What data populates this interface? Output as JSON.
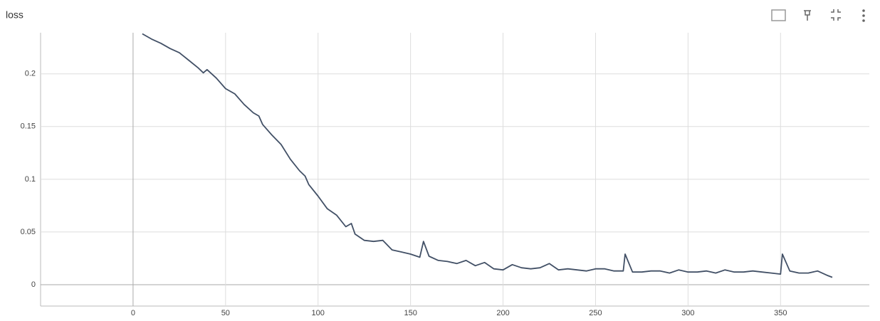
{
  "chart_data": {
    "type": "line",
    "title": "loss",
    "x": [
      5,
      10,
      15,
      20,
      25,
      30,
      35,
      38,
      40,
      45,
      50,
      55,
      60,
      65,
      68,
      70,
      75,
      80,
      85,
      90,
      93,
      95,
      100,
      105,
      110,
      115,
      118,
      120,
      125,
      130,
      135,
      140,
      145,
      150,
      155,
      157,
      160,
      165,
      170,
      175,
      180,
      185,
      190,
      195,
      200,
      205,
      210,
      215,
      220,
      225,
      230,
      235,
      240,
      245,
      250,
      255,
      260,
      265,
      266,
      270,
      275,
      280,
      285,
      290,
      295,
      300,
      305,
      310,
      315,
      320,
      325,
      330,
      335,
      340,
      345,
      350,
      351,
      355,
      360,
      365,
      370,
      375,
      378
    ],
    "series": [
      {
        "name": "loss",
        "color": "#425066",
        "values": [
          0.238,
          0.233,
          0.229,
          0.224,
          0.22,
          0.213,
          0.206,
          0.201,
          0.204,
          0.196,
          0.186,
          0.181,
          0.171,
          0.163,
          0.16,
          0.152,
          0.142,
          0.133,
          0.119,
          0.108,
          0.103,
          0.095,
          0.084,
          0.072,
          0.066,
          0.055,
          0.058,
          0.048,
          0.042,
          0.041,
          0.042,
          0.033,
          0.031,
          0.029,
          0.026,
          0.041,
          0.027,
          0.023,
          0.022,
          0.02,
          0.023,
          0.018,
          0.021,
          0.015,
          0.014,
          0.019,
          0.016,
          0.015,
          0.016,
          0.02,
          0.014,
          0.015,
          0.014,
          0.013,
          0.015,
          0.015,
          0.013,
          0.013,
          0.029,
          0.012,
          0.012,
          0.013,
          0.013,
          0.011,
          0.014,
          0.012,
          0.012,
          0.013,
          0.011,
          0.014,
          0.012,
          0.012,
          0.013,
          0.012,
          0.011,
          0.01,
          0.029,
          0.013,
          0.011,
          0.011,
          0.013,
          0.009,
          0.007
        ]
      }
    ],
    "xlim": [
      -50,
      398
    ],
    "ylim": [
      -0.0203,
      0.239
    ],
    "xticks": [
      0,
      50,
      100,
      150,
      200,
      250,
      300,
      350
    ],
    "yticks": [
      0,
      0.05,
      0.1,
      0.15,
      0.2
    ],
    "grid": true
  }
}
